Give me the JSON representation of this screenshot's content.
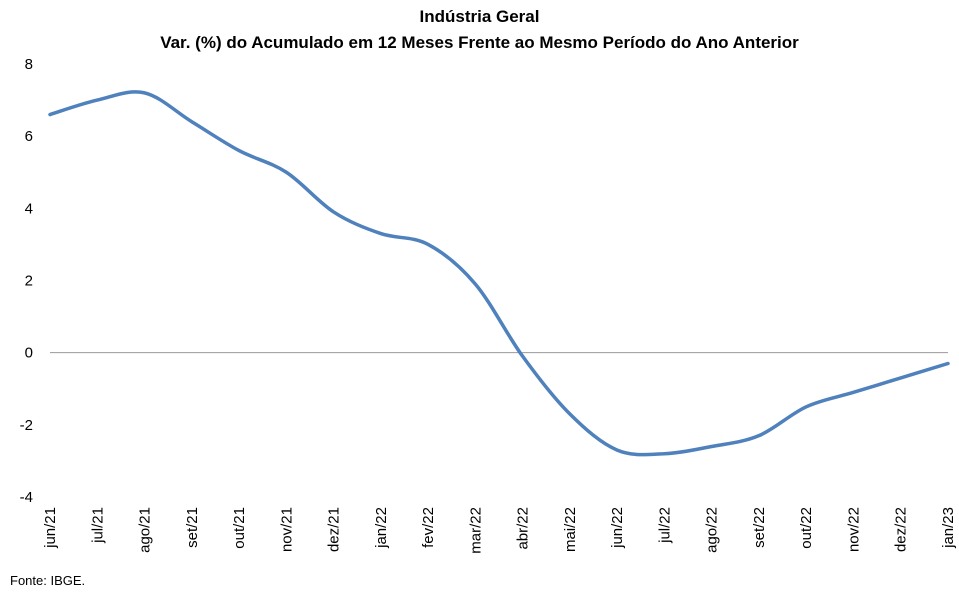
{
  "chart_data": {
    "type": "line",
    "title": "Indústria Geral",
    "subtitle": "Var. (%) do Acumulado em 12 Meses Frente ao Mesmo Período do Ano Anterior",
    "xlabel": "",
    "ylabel": "",
    "ylim": [
      -4,
      8
    ],
    "yticks": [
      "8",
      "6",
      "4",
      "2",
      "0",
      "-2",
      "-4"
    ],
    "categories": [
      "jun/21",
      "jul/21",
      "ago/21",
      "set/21",
      "out/21",
      "nov/21",
      "dez/21",
      "jan/22",
      "fev/22",
      "mar/22",
      "abr/22",
      "mai/22",
      "jun/22",
      "jul/22",
      "ago/22",
      "set/22",
      "out/22",
      "nov/22",
      "dez/22",
      "jan/23"
    ],
    "series": [
      {
        "name": "",
        "color": "#4F81BD",
        "values": [
          6.6,
          7.0,
          7.2,
          6.4,
          5.6,
          5.0,
          3.9,
          3.3,
          3.0,
          1.9,
          -0.1,
          -1.7,
          -2.7,
          -2.8,
          -2.6,
          -2.3,
          -1.5,
          -1.1,
          -0.7,
          -0.3
        ]
      }
    ],
    "grid": false,
    "legend": "none"
  },
  "footer": {
    "source": "Fonte: IBGE."
  }
}
